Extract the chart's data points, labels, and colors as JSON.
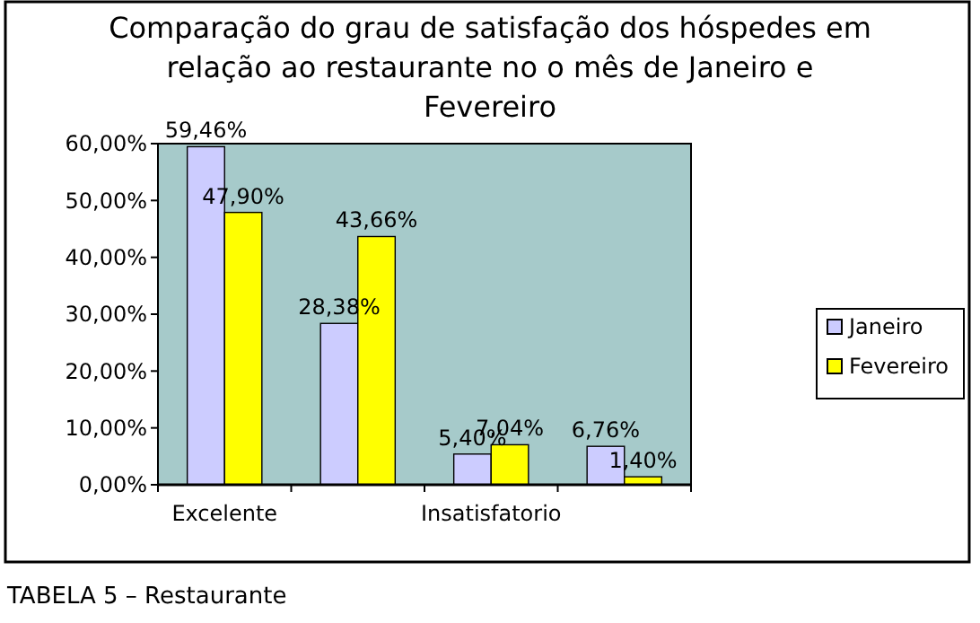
{
  "chart_data": {
    "type": "bar",
    "title": "Comparação do grau de satisfação dos hóspedes em relação ao restaurante no o mês de Janeiro e Fevereiro",
    "categories": [
      "Excelente",
      null,
      "Insatisfatorio",
      null
    ],
    "series": [
      {
        "name": "Janeiro",
        "color": "#ccccff",
        "values": [
          59.46,
          28.38,
          5.4,
          6.76
        ],
        "value_labels": [
          "59,46%",
          "28,38%",
          "5,40%",
          "6,76%"
        ]
      },
      {
        "name": "Fevereiro",
        "color": "#ffff00",
        "values": [
          47.9,
          43.66,
          7.04,
          1.4
        ],
        "value_labels": [
          "47,90%",
          "43,66%",
          "7,04%",
          "1,40%"
        ]
      }
    ],
    "ylim": [
      0,
      60
    ],
    "yticks": [
      {
        "value": 0,
        "label": "0,00%"
      },
      {
        "value": 10,
        "label": "10,00%"
      },
      {
        "value": 20,
        "label": "20,00%"
      },
      {
        "value": 30,
        "label": "30,00%"
      },
      {
        "value": 40,
        "label": "40,00%"
      },
      {
        "value": 50,
        "label": "50,00%"
      },
      {
        "value": 60,
        "label": "60,00%"
      }
    ],
    "grid": false,
    "legend": "right",
    "annotations": [
      "TABELA 5 – Restaurante"
    ]
  }
}
